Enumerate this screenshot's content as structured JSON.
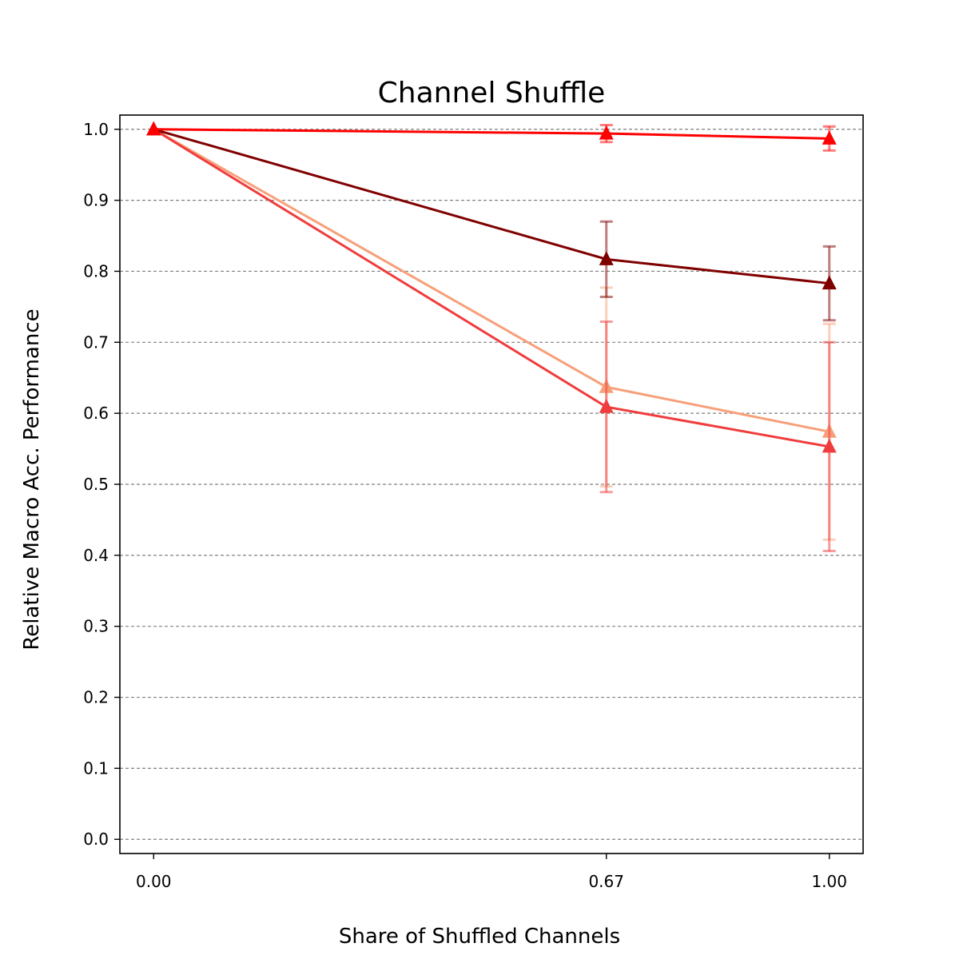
{
  "chart_data": {
    "type": "line",
    "title": "Channel Shuffle",
    "xlabel": "Share of Shuffled Channels",
    "ylabel": "Relative Macro Acc. Performance",
    "x": [
      0.0,
      0.67,
      1.0
    ],
    "x_tick_labels": [
      "0.00",
      "0.67",
      "1.00"
    ],
    "xlim": [
      -0.05,
      1.05
    ],
    "ylim": [
      -0.02,
      1.02
    ],
    "y_ticks": [
      0.0,
      0.1,
      0.2,
      0.3,
      0.4,
      0.5,
      0.6,
      0.7,
      0.8,
      0.9,
      1.0
    ],
    "y_tick_labels": [
      "0.0",
      "0.1",
      "0.2",
      "0.3",
      "0.4",
      "0.5",
      "0.6",
      "0.7",
      "0.8",
      "0.9",
      "1.0"
    ],
    "grid": "horizontal dashed",
    "marker": "triangle",
    "series": [
      {
        "color": "#f7a07a",
        "values": [
          1.0,
          0.637,
          0.574
        ],
        "err": [
          0,
          0.14,
          0.152
        ]
      },
      {
        "color": "#f03c3c",
        "values": [
          1.0,
          0.609,
          0.553
        ],
        "err": [
          0,
          0.12,
          0.147
        ]
      },
      {
        "color": "#800000",
        "values": [
          1.0,
          0.817,
          0.783
        ],
        "err": [
          0,
          0.053,
          0.052
        ]
      },
      {
        "color": "#ff0000",
        "values": [
          1.0,
          0.994,
          0.987
        ],
        "err": [
          0,
          0.012,
          0.017
        ]
      }
    ]
  }
}
